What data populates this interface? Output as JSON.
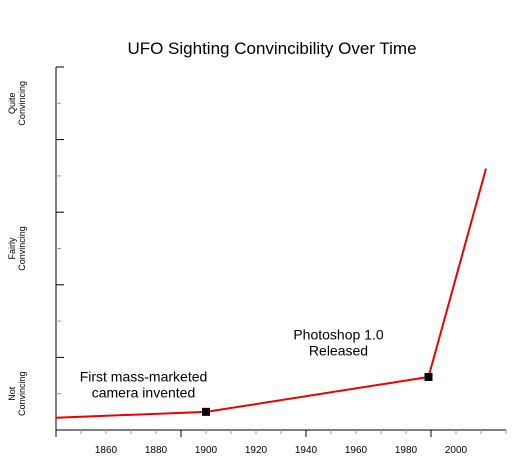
{
  "chart_data": {
    "type": "line",
    "title": "UFO Sighting Convincibility Over Time",
    "xlabel": "",
    "ylabel": "",
    "x_ticks": [
      "1860",
      "1880",
      "1900",
      "1920",
      "1940",
      "1960",
      "1980",
      "2000"
    ],
    "y_category_labels": [
      {
        "line1": "Not",
        "line2": "Convincing",
        "level": 0.5
      },
      {
        "line1": "Fairly",
        "line2": "Convincing",
        "level": 2.5
      },
      {
        "line1": "Quite",
        "line2": "Convincing",
        "level": 4.5
      }
    ],
    "xlim": [
      1840,
      2020
    ],
    "ylim": [
      0,
      5
    ],
    "series": [
      {
        "color": "#ee0000",
        "x": [
          1840,
          1900,
          1989,
          2012
        ],
        "y": [
          0.17,
          0.25,
          0.73,
          3.6
        ]
      }
    ],
    "markers": [
      {
        "x": 1900,
        "y": 0.25
      },
      {
        "x": 1989,
        "y": 0.73
      }
    ],
    "annotations": [
      {
        "lines": [
          "First mass-marketed",
          "camera invented"
        ],
        "x": 1875,
        "y": 0.67
      },
      {
        "lines": [
          "Photoshop 1.0",
          "Released"
        ],
        "x": 1953,
        "y": 1.25
      }
    ],
    "grid": false
  }
}
